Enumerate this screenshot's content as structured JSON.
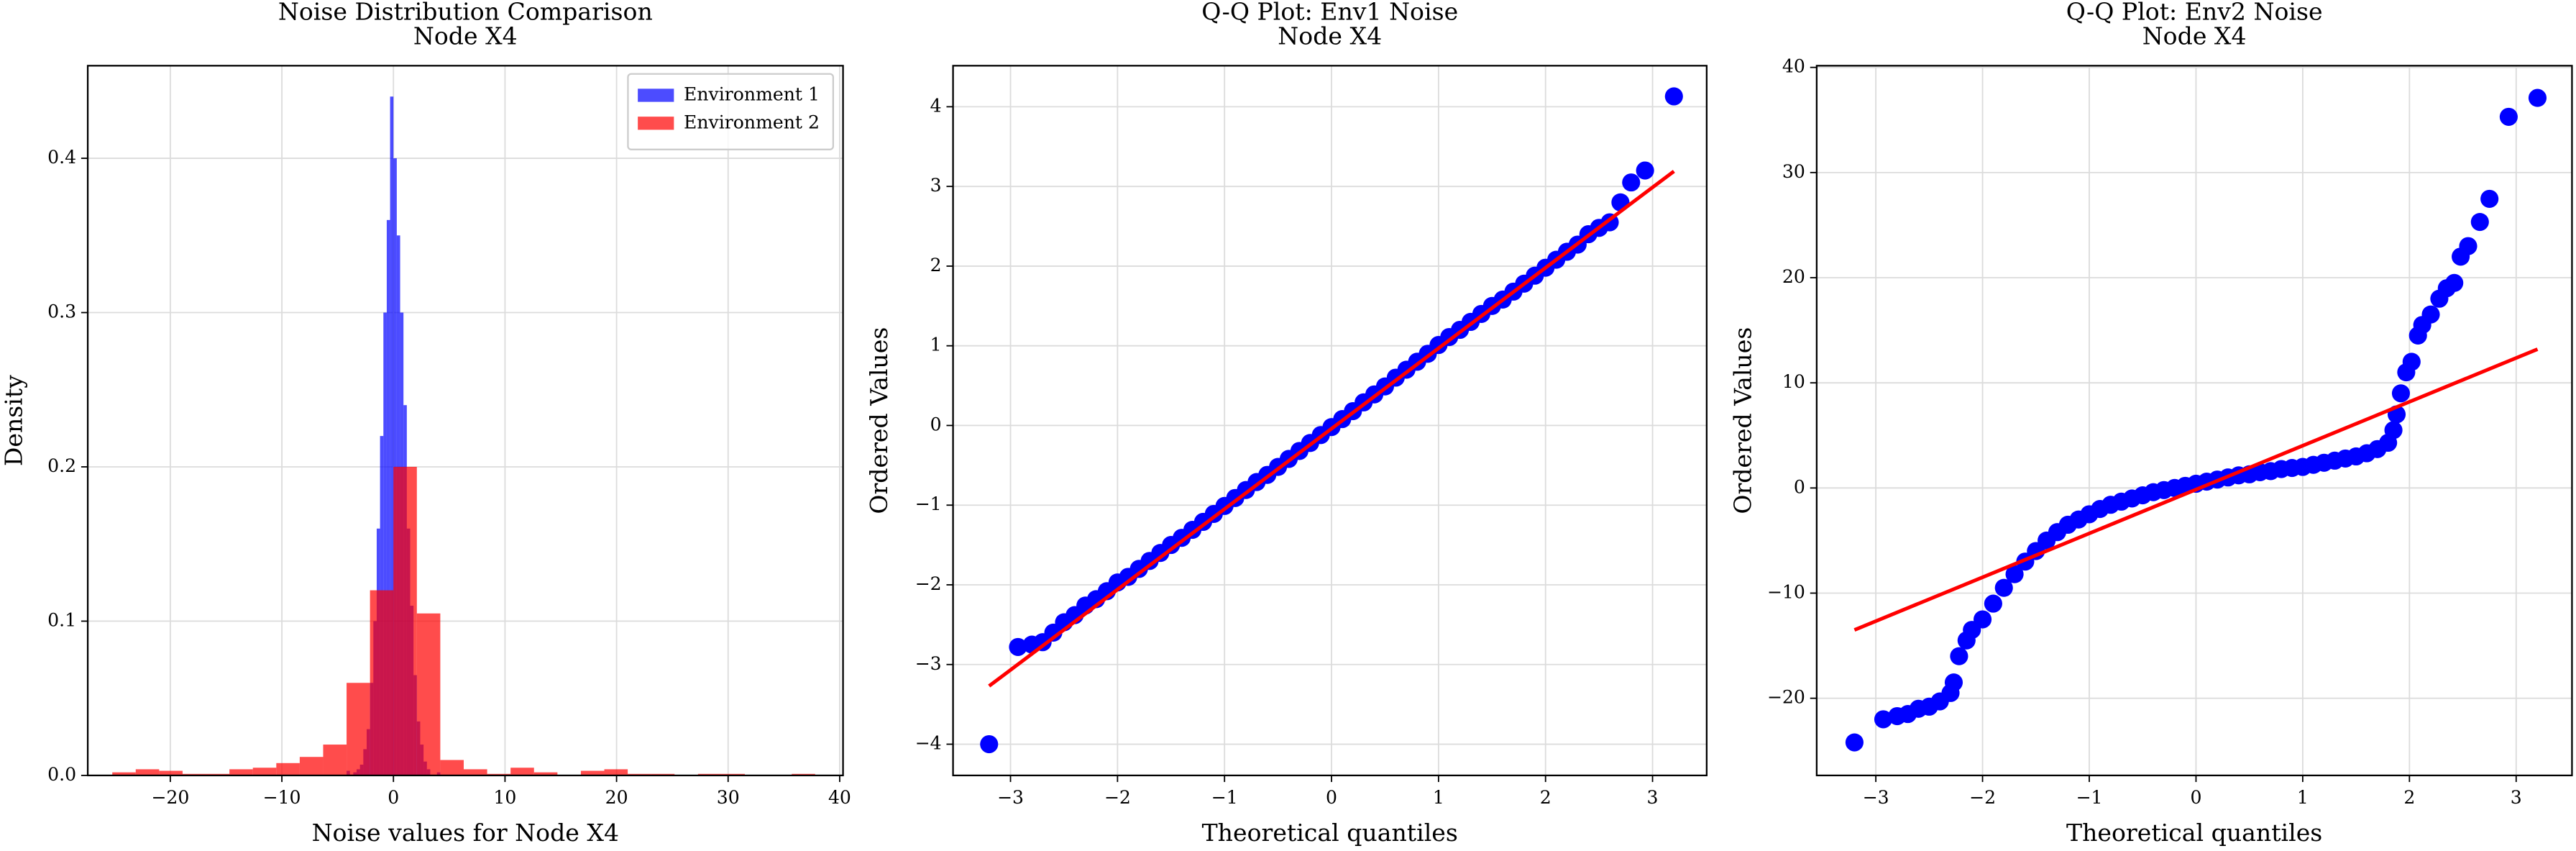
{
  "chart_data": [
    {
      "type": "histogram",
      "title": "Noise Distribution Comparison",
      "subtitle": "Node X4",
      "xlabel": "Noise values for Node X4",
      "ylabel": "Density",
      "xlim": [
        -27.4,
        40.3
      ],
      "ylim": [
        0,
        0.46
      ],
      "xticks": [
        {
          "value": -20,
          "label": "−20"
        },
        {
          "value": -10,
          "label": "−10"
        },
        0,
        10,
        20,
        30,
        40
      ],
      "yticks": [
        {
          "value": 0,
          "label": "0.0"
        },
        0.1,
        0.2,
        0.3,
        0.4
      ],
      "grid": true,
      "legend": "upper right",
      "alpha": 0.7,
      "series": [
        {
          "name": "Environment 1",
          "color": "#0000ff",
          "bins": [
            -4.2,
            -3.9,
            -3.6,
            -3.3,
            -3.0,
            -2.7,
            -2.4,
            -2.1,
            -1.8,
            -1.5,
            -1.2,
            -0.9,
            -0.6,
            -0.3,
            0,
            0.3,
            0.6,
            0.9,
            1.2,
            1.5,
            1.8,
            2.1,
            2.4,
            2.7,
            3.0,
            3.3,
            3.6,
            3.9,
            4.2
          ],
          "values": [
            0.003,
            0,
            0.002,
            0.004,
            0.007,
            0.017,
            0.03,
            0.06,
            0.1,
            0.16,
            0.22,
            0.3,
            0.36,
            0.44,
            0.4,
            0.35,
            0.3,
            0.24,
            0.16,
            0.11,
            0.065,
            0.035,
            0.02,
            0.009,
            0.004,
            0,
            0,
            0.002
          ]
        },
        {
          "name": "Environment 2",
          "color": "#ff0000",
          "bins": [
            -25.2,
            -23.1,
            -21,
            -18.9,
            -16.8,
            -14.7,
            -12.6,
            -10.5,
            -8.4,
            -6.3,
            -4.2,
            -2.1,
            0,
            2.1,
            4.2,
            6.3,
            8.4,
            10.5,
            12.6,
            14.7,
            16.8,
            18.9,
            21,
            23.1,
            25.2,
            27.3,
            29.4,
            31.5,
            33.6,
            35.7,
            37.8
          ],
          "values": [
            0.002,
            0.004,
            0.003,
            0.001,
            0.001,
            0.004,
            0.005,
            0.008,
            0.012,
            0.02,
            0.06,
            0.12,
            0.2,
            0.105,
            0.01,
            0.004,
            0.001,
            0.005,
            0.002,
            0,
            0.003,
            0.004,
            0.001,
            0.001,
            0,
            0.001,
            0.001,
            0,
            0,
            0.001
          ]
        }
      ]
    },
    {
      "type": "scatter",
      "title": "Q-Q Plot: Env1 Noise",
      "subtitle": "Node X4",
      "xlabel": "Theoretical quantiles",
      "ylabel": "Ordered Values",
      "xlim": [
        -3.537,
        3.506
      ],
      "ylim": [
        -4.392,
        4.515
      ],
      "xticks": [
        {
          "value": -3,
          "label": "−3"
        },
        {
          "value": -2,
          "label": "−2"
        },
        {
          "value": -1,
          "label": "−1"
        },
        0,
        1,
        2,
        3
      ],
      "yticks": [
        {
          "value": -4,
          "label": "−4"
        },
        {
          "value": -3,
          "label": "−3"
        },
        {
          "value": -2,
          "label": "−2"
        },
        {
          "value": -1,
          "label": "−1"
        },
        0,
        1,
        2,
        3,
        4
      ],
      "grid": true,
      "color": "#0000ff",
      "x": [
        -3.2,
        -2.93,
        -2.8,
        -2.7,
        -2.6,
        -2.5,
        -2.4,
        -2.3,
        -2.2,
        -2.1,
        -2.0,
        -1.9,
        -1.8,
        -1.7,
        -1.6,
        -1.5,
        -1.4,
        -1.3,
        -1.2,
        -1.1,
        -1.0,
        -0.9,
        -0.8,
        -0.7,
        -0.6,
        -0.5,
        -0.4,
        -0.3,
        -0.2,
        -0.1,
        0,
        0.1,
        0.2,
        0.3,
        0.4,
        0.5,
        0.6,
        0.7,
        0.8,
        0.9,
        1.0,
        1.1,
        1.2,
        1.3,
        1.4,
        1.5,
        1.6,
        1.7,
        1.8,
        1.9,
        2.0,
        2.1,
        2.2,
        2.3,
        2.4,
        2.5,
        2.6,
        2.7,
        2.8,
        2.93,
        3.2
      ],
      "y": [
        -4.0,
        -2.78,
        -2.75,
        -2.72,
        -2.6,
        -2.47,
        -2.38,
        -2.26,
        -2.18,
        -2.08,
        -1.97,
        -1.9,
        -1.8,
        -1.7,
        -1.6,
        -1.5,
        -1.41,
        -1.31,
        -1.21,
        -1.11,
        -1.01,
        -0.91,
        -0.81,
        -0.71,
        -0.62,
        -0.52,
        -0.42,
        -0.32,
        -0.22,
        -0.12,
        -0.02,
        0.08,
        0.18,
        0.29,
        0.39,
        0.49,
        0.6,
        0.7,
        0.8,
        0.9,
        1.01,
        1.11,
        1.2,
        1.3,
        1.4,
        1.5,
        1.58,
        1.68,
        1.78,
        1.88,
        1.98,
        2.08,
        2.18,
        2.27,
        2.4,
        2.48,
        2.55,
        2.8,
        3.05,
        3.2,
        4.13
      ],
      "fit_line": {
        "color": "#ff0000",
        "x": [
          -3.2,
          3.2
        ],
        "y": [
          -3.27,
          3.19
        ]
      }
    },
    {
      "type": "scatter",
      "title": "Q-Q Plot: Env2 Noise",
      "subtitle": "Node X4",
      "xlabel": "Theoretical quantiles",
      "ylabel": "Ordered Values",
      "xlim": [
        -3.554,
        3.523
      ],
      "ylim": [
        -27.34,
        40.16
      ],
      "xticks": [
        {
          "value": -3,
          "label": "−3"
        },
        {
          "value": -2,
          "label": "−2"
        },
        {
          "value": -1,
          "label": "−1"
        },
        0,
        1,
        2,
        3
      ],
      "yticks": [
        {
          "value": -20,
          "label": "−20"
        },
        {
          "value": -10,
          "label": "−10"
        },
        0,
        10,
        20,
        30,
        40
      ],
      "grid": true,
      "color": "#0000ff",
      "x": [
        -3.2,
        -2.93,
        -2.8,
        -2.7,
        -2.6,
        -2.5,
        -2.4,
        -2.3,
        -2.27,
        -2.22,
        -2.15,
        -2.1,
        -2.0,
        -1.9,
        -1.8,
        -1.7,
        -1.6,
        -1.5,
        -1.4,
        -1.3,
        -1.2,
        -1.1,
        -1.0,
        -0.9,
        -0.8,
        -0.7,
        -0.6,
        -0.5,
        -0.4,
        -0.3,
        -0.2,
        -0.1,
        0,
        0.1,
        0.2,
        0.3,
        0.4,
        0.5,
        0.6,
        0.7,
        0.8,
        0.9,
        1.0,
        1.1,
        1.2,
        1.3,
        1.4,
        1.5,
        1.6,
        1.7,
        1.8,
        1.85,
        1.88,
        1.92,
        1.97,
        2.02,
        2.08,
        2.12,
        2.2,
        2.28,
        2.35,
        2.42,
        2.48,
        2.55,
        2.66,
        2.75,
        2.93,
        3.2
      ],
      "y": [
        -24.2,
        -22,
        -21.7,
        -21.5,
        -21,
        -20.8,
        -20.3,
        -19.5,
        -18.5,
        -16,
        -14.5,
        -13.5,
        -12.5,
        -11,
        -9.5,
        -8.2,
        -7,
        -6,
        -5,
        -4.2,
        -3.5,
        -3,
        -2.5,
        -2,
        -1.6,
        -1.3,
        -1,
        -0.7,
        -0.4,
        -0.2,
        0,
        0.2,
        0.4,
        0.6,
        0.8,
        1,
        1.2,
        1.3,
        1.5,
        1.6,
        1.8,
        1.9,
        2.0,
        2.2,
        2.4,
        2.6,
        2.8,
        3.0,
        3.3,
        3.7,
        4.3,
        5.5,
        7,
        9,
        11,
        12,
        14.5,
        15.5,
        16.5,
        18,
        19,
        19.5,
        22,
        23,
        25.3,
        27.5,
        35.3,
        37.1
      ],
      "fit_line": {
        "color": "#ff0000",
        "x": [
          -3.2,
          3.2
        ],
        "y": [
          -13.5,
          13.2
        ]
      }
    }
  ]
}
